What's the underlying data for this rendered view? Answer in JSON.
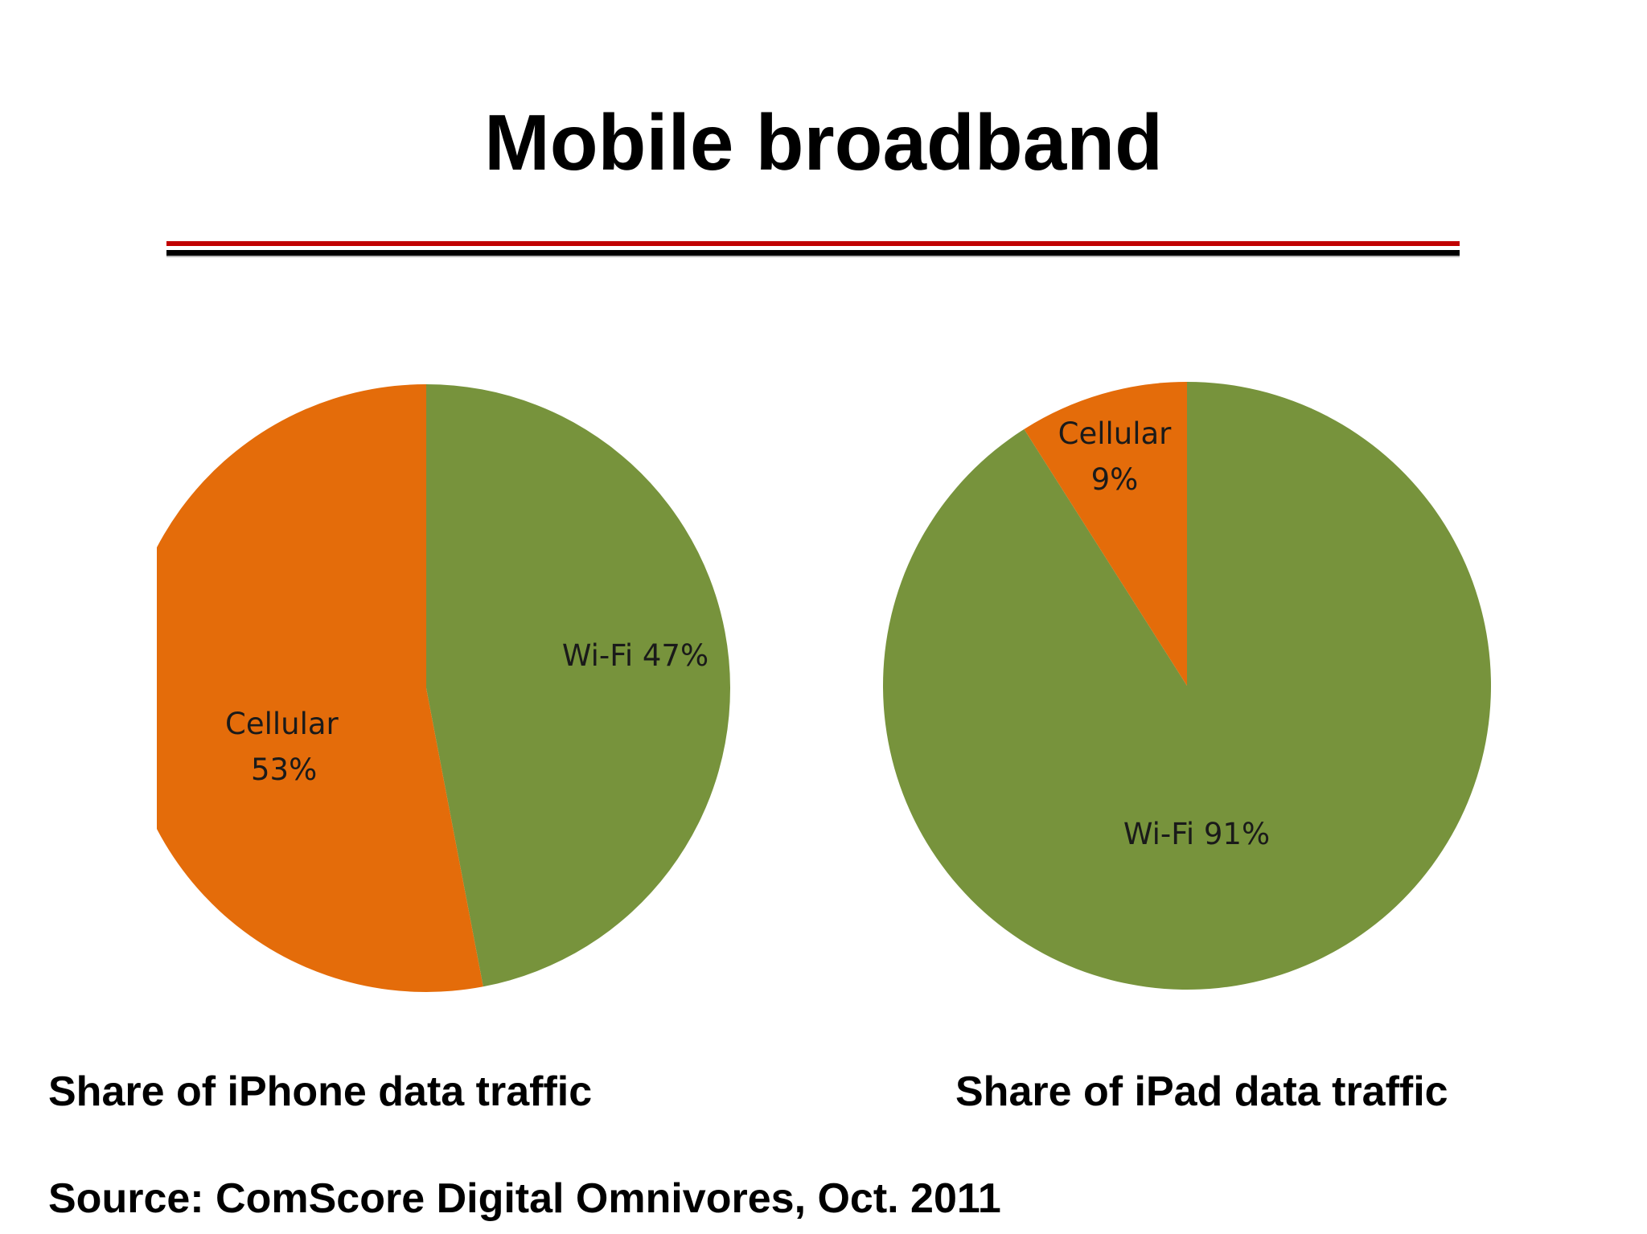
{
  "slide": {
    "title": "Mobile broadband",
    "source": "Source: ComScore Digital Omnivores, Oct. 2011"
  },
  "colors": {
    "cellular": "#E46C0A",
    "wifi": "#77933C",
    "rule_red": "#C00000",
    "rule_black": "#000000"
  },
  "chart_data": [
    {
      "type": "pie",
      "title": "Share of iPhone data traffic",
      "slices": [
        {
          "label_lines": [
            "Wi-Fi 47%"
          ],
          "value": 47,
          "color": "#77933C"
        },
        {
          "label_lines": [
            "Cellular",
            "53%"
          ],
          "value": 53,
          "color": "#E46C0A"
        }
      ]
    },
    {
      "type": "pie",
      "title": "Share of iPad data traffic",
      "slices": [
        {
          "label_lines": [
            "Wi-Fi 91%"
          ],
          "value": 91,
          "color": "#77933C"
        },
        {
          "label_lines": [
            "Cellular",
            "9%"
          ],
          "value": 9,
          "color": "#E46C0A"
        }
      ]
    }
  ]
}
